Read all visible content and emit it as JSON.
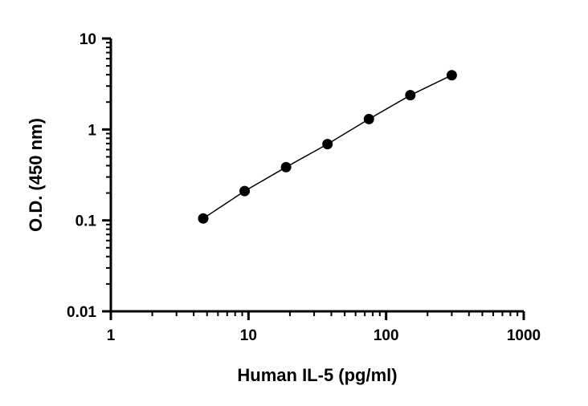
{
  "chart_data": {
    "type": "scatter",
    "title": "",
    "xlabel": "Human IL-5 (pg/ml)",
    "ylabel": "O.D. (450 nm)",
    "x_scale": "log",
    "y_scale": "log",
    "xlim": [
      1,
      1000
    ],
    "ylim": [
      0.01,
      10
    ],
    "x_ticks": [
      {
        "value": 1,
        "label": "1"
      },
      {
        "value": 10,
        "label": "10"
      },
      {
        "value": 100,
        "label": "100"
      },
      {
        "value": 1000,
        "label": "1000"
      }
    ],
    "y_ticks": [
      {
        "value": 0.01,
        "label": "0.01"
      },
      {
        "value": 0.1,
        "label": "0.1"
      },
      {
        "value": 1,
        "label": "1"
      },
      {
        "value": 10,
        "label": "10"
      }
    ],
    "grid": false,
    "legend": "none",
    "series": [
      {
        "x": [
          4.69,
          9.38,
          18.75,
          37.5,
          75,
          150,
          300
        ],
        "y": [
          0.105,
          0.21,
          0.385,
          0.69,
          1.3,
          2.38,
          3.95
        ],
        "marker_color": "#000000",
        "line_color": "#000000",
        "fit_line": true
      }
    ]
  }
}
